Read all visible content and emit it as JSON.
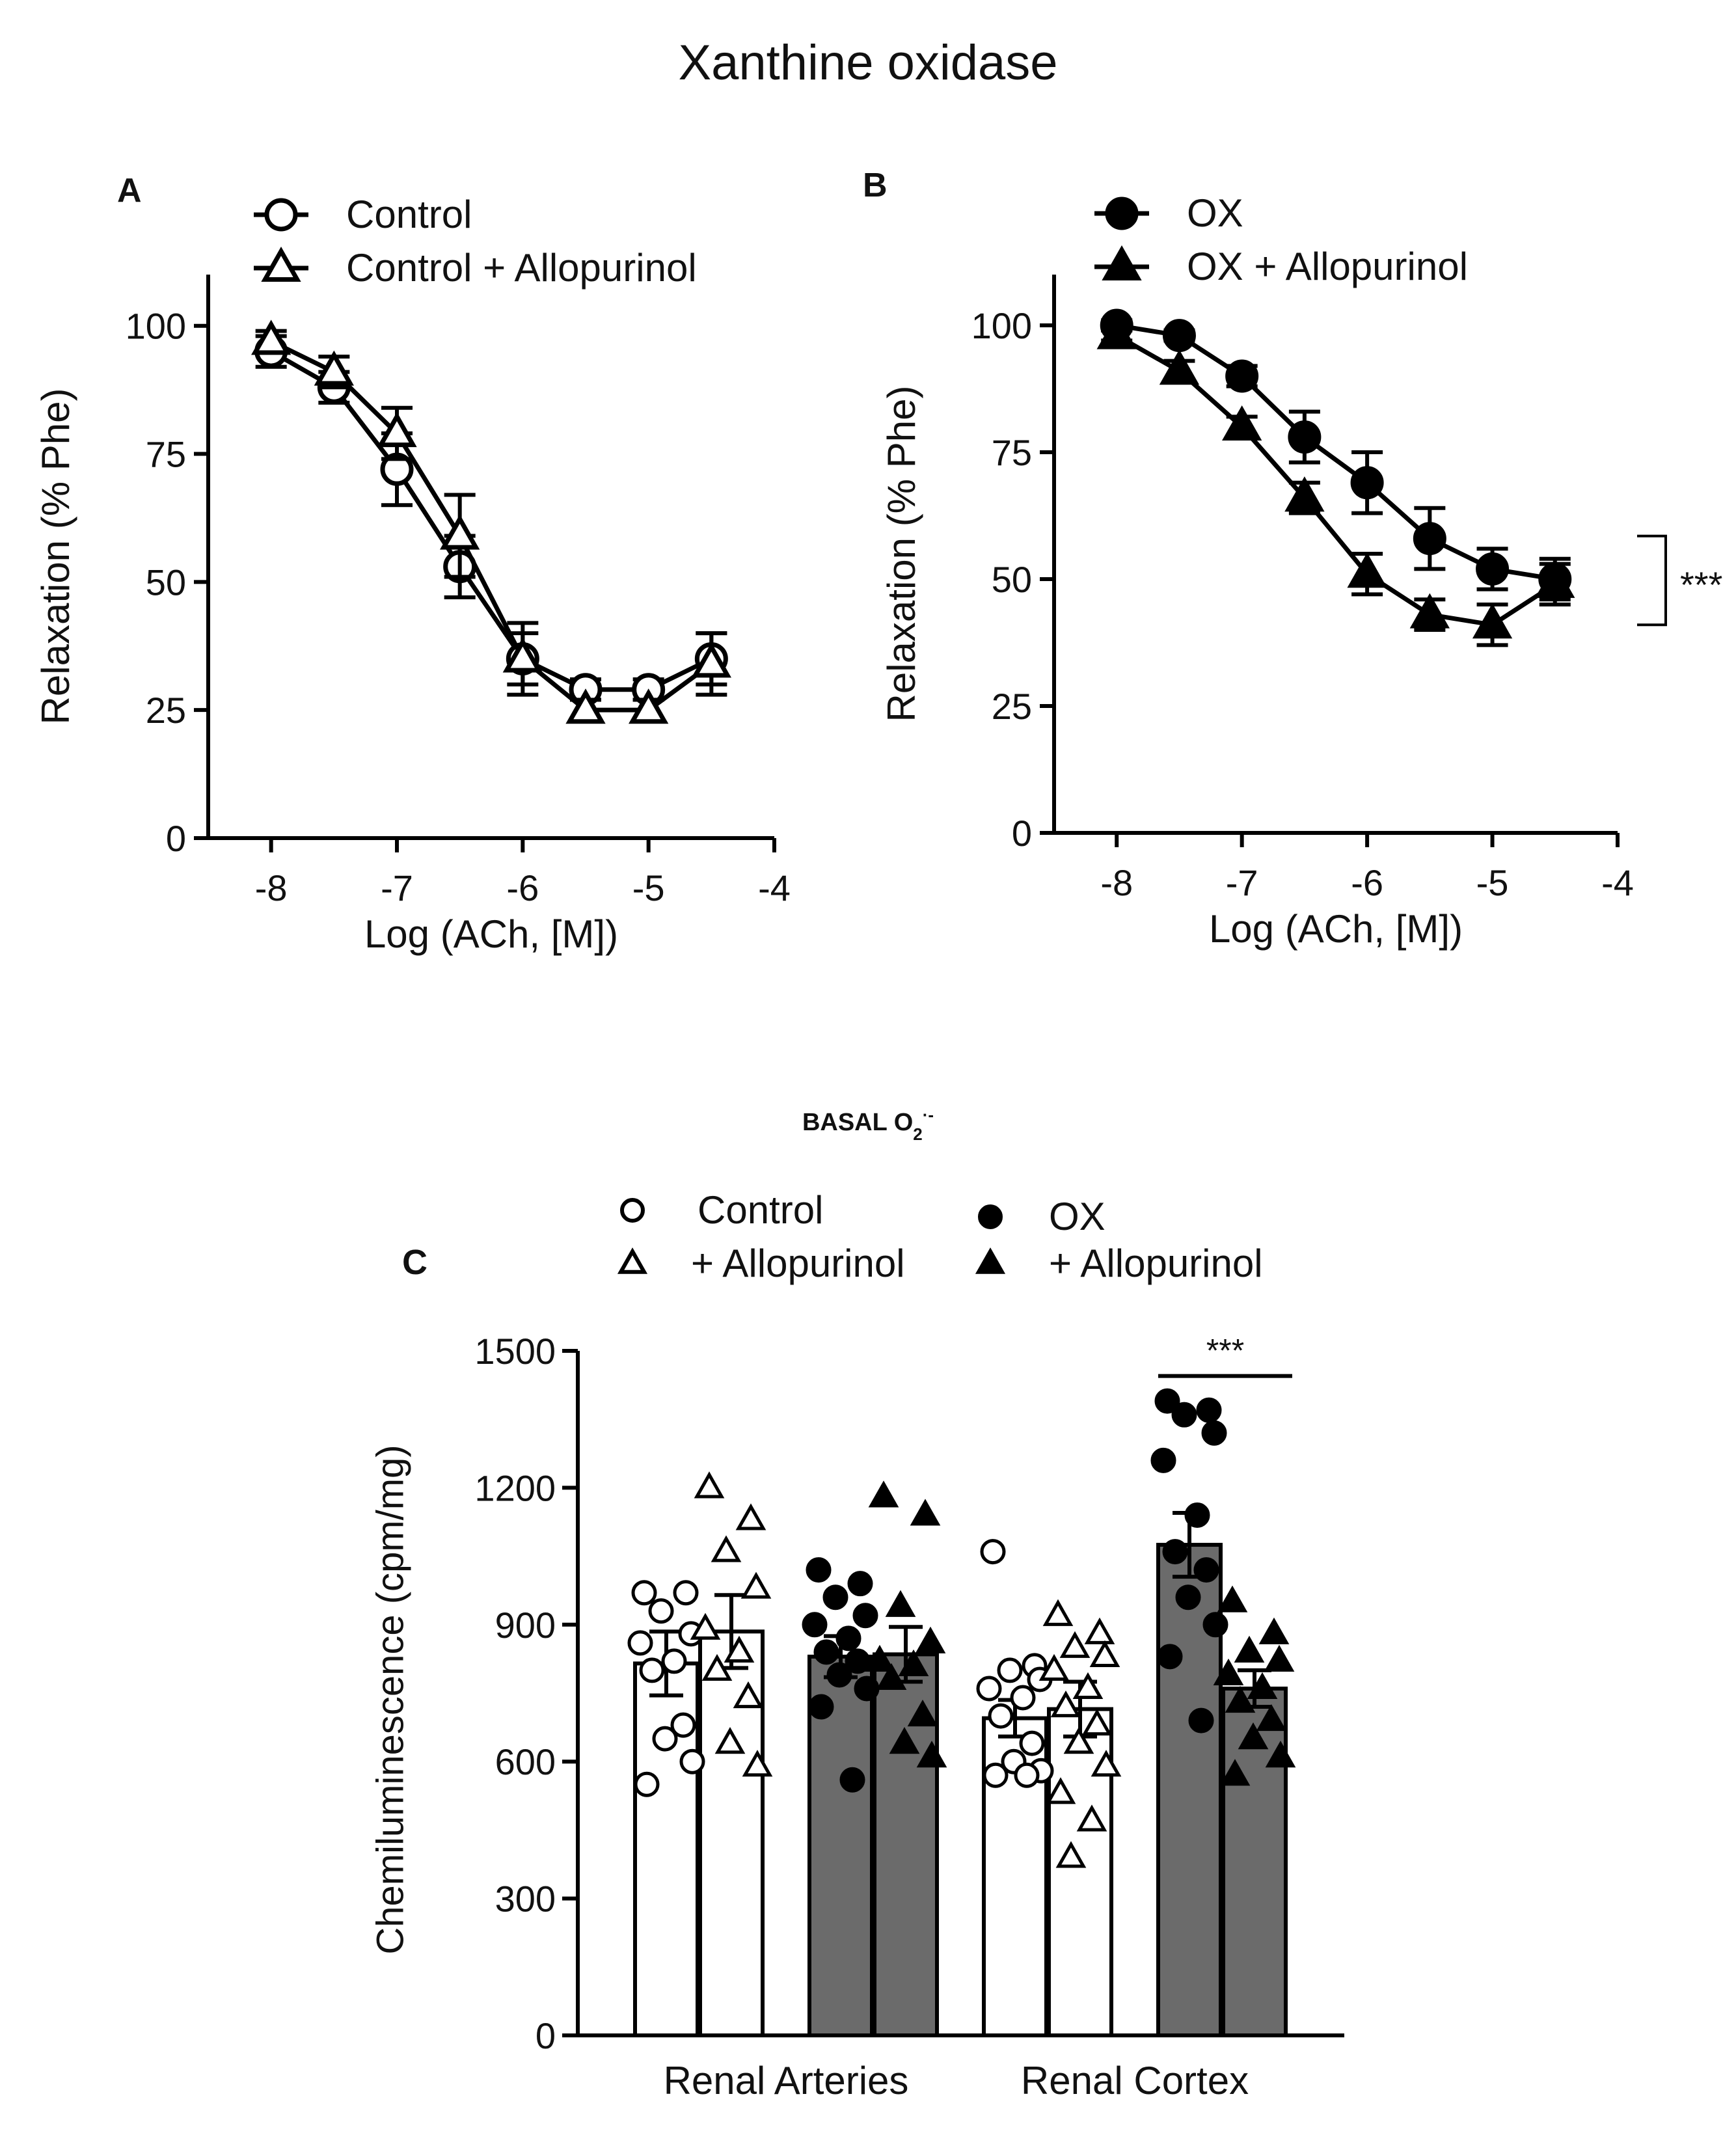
{
  "figure_title": "Xanthine oxidase",
  "chart_data": [
    {
      "panel": "A",
      "type": "line",
      "xlabel": "Log (ACh, [M])",
      "ylabel": "Relaxation (% Phe)",
      "xlim": [
        -8.5,
        -4
      ],
      "ylim": [
        0,
        110
      ],
      "xticks": [
        -8,
        -7,
        -6,
        -5,
        -4
      ],
      "yticks": [
        0,
        25,
        50,
        75,
        100
      ],
      "x": [
        -8,
        -7.5,
        -7,
        -6.5,
        -6,
        -5.5,
        -5,
        -4.5
      ],
      "series": [
        {
          "name": "Control",
          "marker": "circle-open",
          "values": [
            95,
            88,
            72,
            53,
            35,
            29,
            29,
            35
          ],
          "sem": [
            3,
            3,
            7,
            6,
            5,
            2,
            2,
            5
          ]
        },
        {
          "name": "Control + Allopurinol",
          "marker": "triangle-open",
          "values": [
            97,
            91,
            79,
            59,
            35,
            25,
            25,
            34
          ],
          "sem": [
            2,
            3,
            5,
            8,
            7,
            2,
            2,
            6
          ]
        }
      ]
    },
    {
      "panel": "B",
      "type": "line",
      "xlabel": "Log (ACh, [M])",
      "ylabel": "Relaxation (% Phe)",
      "xlim": [
        -8.5,
        -4
      ],
      "ylim": [
        0,
        110
      ],
      "xticks": [
        -8,
        -7,
        -6,
        -5,
        -4
      ],
      "yticks": [
        0,
        25,
        50,
        75,
        100
      ],
      "x": [
        -8,
        -7.5,
        -7,
        -6.5,
        -6,
        -5.5,
        -5,
        -4.5
      ],
      "series": [
        {
          "name": "OX",
          "marker": "circle-filled",
          "values": [
            100,
            98,
            90,
            78,
            69,
            58,
            52,
            50
          ],
          "sem": [
            1,
            1,
            2,
            5,
            6,
            6,
            4,
            4
          ]
        },
        {
          "name": "OX + Allopurinol",
          "marker": "triangle-filled",
          "values": [
            98,
            91,
            80,
            66,
            51,
            43,
            41,
            49
          ],
          "sem": [
            1,
            2,
            2,
            3,
            4,
            3,
            4,
            4
          ]
        }
      ],
      "significance": "***"
    },
    {
      "panel": "C",
      "type": "bar",
      "title": "BASAL O",
      "title_sub": "2",
      "title_sup": "·-",
      "ylabel": "Chemiluminescence (cpm/mg)",
      "ylim": [
        0,
        1500
      ],
      "yticks": [
        0,
        300,
        600,
        900,
        1200,
        1500
      ],
      "categories": [
        "Renal Arteries",
        "Renal Cortex"
      ],
      "legend": [
        {
          "label": "Control",
          "marker": "circle-open"
        },
        {
          "label": "+ Allopurinol",
          "marker": "triangle-open"
        },
        {
          "label": "OX",
          "marker": "circle-filled"
        },
        {
          "label": "+ Allopurinol",
          "marker": "triangle-filled"
        }
      ],
      "bars": [
        {
          "category": "Renal Arteries",
          "group": "Control",
          "fill": "#ffffff",
          "marker": "circle-open",
          "mean": 815,
          "sem": 70,
          "points": [
            970,
            970,
            930,
            880,
            860,
            820,
            800,
            680,
            650,
            600,
            550
          ]
        },
        {
          "category": "Renal Arteries",
          "group": "Control + Allopurinol",
          "fill": "#ffffff",
          "marker": "triangle-open",
          "mean": 885,
          "sem": 80,
          "points": [
            1200,
            1130,
            1060,
            980,
            890,
            840,
            800,
            740,
            640,
            590
          ]
        },
        {
          "category": "Renal Arteries",
          "group": "OX",
          "fill": "#6b6b6b",
          "marker": "circle-filled",
          "mean": 830,
          "sem": 45,
          "points": [
            1020,
            990,
            960,
            920,
            900,
            870,
            840,
            820,
            790,
            760,
            720,
            560
          ]
        },
        {
          "category": "Renal Arteries",
          "group": "OX + Allopurinol",
          "fill": "#6b6b6b",
          "marker": "triangle-filled",
          "mean": 835,
          "sem": 60,
          "points": [
            1180,
            1140,
            940,
            860,
            820,
            810,
            780,
            700,
            640,
            610
          ]
        },
        {
          "category": "Renal Cortex",
          "group": "Control",
          "fill": "#ffffff",
          "marker": "circle-open",
          "mean": 695,
          "sem": 40,
          "points": [
            1060,
            810,
            800,
            780,
            760,
            740,
            700,
            640,
            600,
            580,
            570,
            570
          ]
        },
        {
          "category": "Renal Cortex",
          "group": "Control + Allopurinol",
          "fill": "#ffffff",
          "marker": "triangle-open",
          "mean": 715,
          "sem": 60,
          "points": [
            920,
            880,
            850,
            830,
            800,
            760,
            720,
            680,
            640,
            590,
            530,
            470,
            390
          ]
        },
        {
          "category": "Renal Cortex",
          "group": "OX",
          "fill": "#6b6b6b",
          "marker": "circle-filled",
          "mean": 1075,
          "sem": 70,
          "points": [
            1390,
            1370,
            1360,
            1320,
            1260,
            1140,
            1060,
            1020,
            960,
            900,
            830,
            690
          ]
        },
        {
          "category": "Renal Cortex",
          "group": "OX + Allopurinol",
          "fill": "#6b6b6b",
          "marker": "triangle-filled",
          "mean": 760,
          "sem": 40,
          "points": [
            950,
            880,
            840,
            820,
            790,
            760,
            730,
            690,
            650,
            610,
            570
          ]
        }
      ],
      "significance": "***"
    }
  ]
}
